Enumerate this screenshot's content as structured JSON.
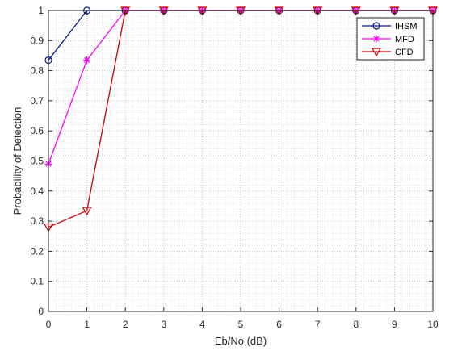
{
  "chart_data": {
    "type": "line",
    "title": "",
    "xlabel": "Eb/No (dB)",
    "ylabel": "Probability of Detection",
    "x": [
      0,
      1,
      2,
      3,
      4,
      5,
      6,
      7,
      8,
      9,
      10
    ],
    "xlim": [
      0,
      10
    ],
    "ylim": [
      0,
      1
    ],
    "xticks": [
      0,
      1,
      2,
      3,
      4,
      5,
      6,
      7,
      8,
      9,
      10
    ],
    "yticks": [
      0,
      0.1,
      0.2,
      0.3,
      0.4,
      0.5,
      0.6,
      0.7,
      0.8,
      0.9,
      1
    ],
    "ytick_labels": [
      "0",
      "0.1",
      "0.2",
      "0.3",
      "0.4",
      "0.5",
      "0.6",
      "0.7",
      "0.8",
      "0.9",
      "1"
    ],
    "grid": true,
    "minor_grid": true,
    "legend_position": "top-right",
    "series": [
      {
        "name": "IHSM",
        "color": "#00188c",
        "marker": "circle",
        "values": [
          0.835,
          1,
          1,
          1,
          1,
          1,
          1,
          1,
          1,
          1,
          1
        ]
      },
      {
        "name": "MFD",
        "color": "#ff00ff",
        "marker": "asterisk",
        "values": [
          0.49,
          0.835,
          1,
          1,
          1,
          1,
          1,
          1,
          1,
          1,
          1
        ]
      },
      {
        "name": "CFD",
        "color": "#cc0000",
        "marker": "triangle-down",
        "values": [
          0.28,
          0.335,
          1,
          1,
          1,
          1,
          1,
          1,
          1,
          1,
          1
        ]
      }
    ]
  }
}
